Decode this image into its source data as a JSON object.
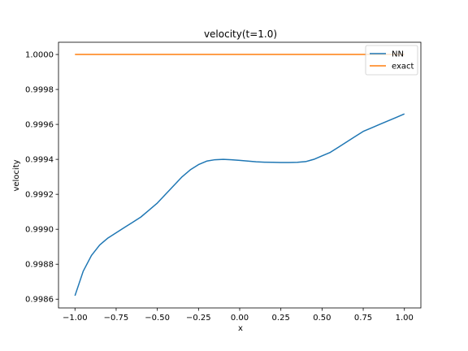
{
  "chart_data": {
    "type": "line",
    "title": "velocity(t=1.0)",
    "xlabel": "x",
    "ylabel": "velocity",
    "xlim": [
      -1.1,
      1.1
    ],
    "ylim": [
      0.99855,
      1.00007
    ],
    "xticks": [
      -1.0,
      -0.75,
      -0.5,
      -0.25,
      0.0,
      0.25,
      0.5,
      0.75,
      1.0
    ],
    "xtick_labels": [
      "−1.00",
      "−0.75",
      "−0.50",
      "−0.25",
      "0.00",
      "0.25",
      "0.50",
      "0.75",
      "1.00"
    ],
    "yticks": [
      0.9986,
      0.9988,
      0.999,
      0.9992,
      0.9994,
      0.9996,
      0.9998,
      1.0
    ],
    "ytick_labels": [
      "0.9986",
      "0.9988",
      "0.9990",
      "0.9992",
      "0.9994",
      "0.9996",
      "0.9998",
      "1.0000"
    ],
    "grid": false,
    "legend_position": "top-right",
    "series": [
      {
        "name": "NN",
        "color": "#1f77b4",
        "x": [
          -1.0,
          -0.95,
          -0.9,
          -0.85,
          -0.8,
          -0.75,
          -0.7,
          -0.65,
          -0.6,
          -0.55,
          -0.5,
          -0.45,
          -0.4,
          -0.35,
          -0.3,
          -0.25,
          -0.2,
          -0.15,
          -0.1,
          -0.05,
          0.0,
          0.05,
          0.1,
          0.15,
          0.2,
          0.25,
          0.3,
          0.35,
          0.4,
          0.45,
          0.5,
          0.55,
          0.6,
          0.65,
          0.7,
          0.75,
          0.8,
          0.85,
          0.9,
          0.95,
          1.0
        ],
        "y": [
          0.99862,
          0.99876,
          0.99885,
          0.99891,
          0.99895,
          0.99898,
          0.99901,
          0.99904,
          0.99907,
          0.99911,
          0.99915,
          0.9992,
          0.99925,
          0.9993,
          0.99934,
          0.99937,
          0.99939,
          0.999398,
          0.9994,
          0.999398,
          0.999394,
          0.99939,
          0.999386,
          0.999384,
          0.999383,
          0.999382,
          0.999382,
          0.999383,
          0.999387,
          0.9994,
          0.99942,
          0.99944,
          0.99947,
          0.9995,
          0.99953,
          0.99956,
          0.99958,
          0.9996,
          0.99962,
          0.99964,
          0.99966
        ]
      },
      {
        "name": "exact",
        "color": "#ff7f0e",
        "x": [
          -1.0,
          1.0
        ],
        "y": [
          1.0,
          1.0
        ]
      }
    ]
  }
}
